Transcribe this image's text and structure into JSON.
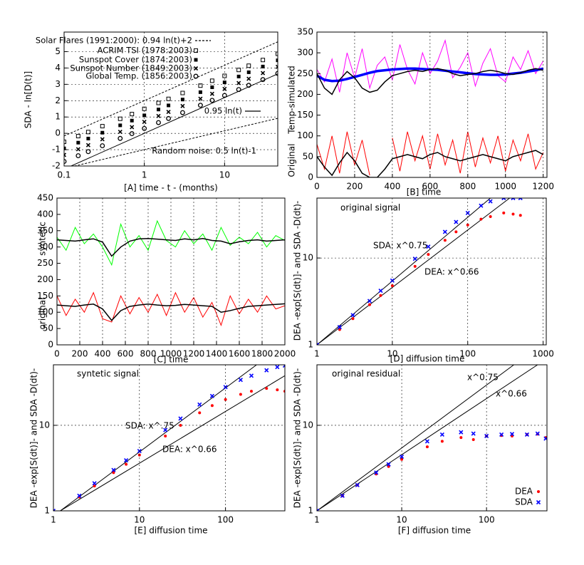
{
  "chart_data": [
    {
      "type": "line",
      "xlog": true,
      "xlim": [
        0.1,
        46
      ],
      "ylim": [
        -2,
        6.2
      ],
      "xticks": [
        0.1,
        1,
        10
      ],
      "yticks": [
        -2,
        -1,
        0,
        1,
        2,
        3,
        4,
        5
      ],
      "grid": true,
      "legend": "upper left",
      "xlabel": "[A]   time   - t -   (months)",
      "ylabel": "SDA   -   ln[D(t)]",
      "series": [
        {
          "name": "Solar Flares (1991:2000): 0.94 ln(t)+2",
          "style": "dash",
          "color": "#000000",
          "x": [
            0.1,
            46
          ],
          "values": [
            -0.16,
            5.6
          ]
        },
        {
          "name": "ACRIM TSI  (1978:2003)",
          "style": "points",
          "marker": "square",
          "color": "#000000",
          "x": [
            0.1,
            0.15,
            0.2,
            0.3,
            0.5,
            0.7,
            1,
            1.5,
            2,
            3,
            5,
            7,
            10,
            15,
            20,
            30,
            46
          ],
          "values": [
            -0.52,
            -0.17,
            0.08,
            0.44,
            0.89,
            1.18,
            1.5,
            1.86,
            2.11,
            2.47,
            2.92,
            3.22,
            3.52,
            3.88,
            4.14,
            4.49,
            4.87
          ]
        },
        {
          "name": "Sunspot Cover  (1874:2003)",
          "style": "points",
          "marker": "filled-square",
          "color": "#000000",
          "x": [
            0.1,
            0.15,
            0.2,
            0.3,
            0.5,
            0.7,
            1,
            1.5,
            2,
            3,
            5,
            7,
            10,
            15,
            20,
            30,
            46
          ],
          "values": [
            -0.92,
            -0.57,
            -0.32,
            0.04,
            0.49,
            0.78,
            1.1,
            1.46,
            1.71,
            2.07,
            2.52,
            2.82,
            3.12,
            3.48,
            3.74,
            4.09,
            4.47
          ]
        },
        {
          "name": "Sunspot Number  (1849:2003)",
          "style": "points",
          "marker": "x",
          "color": "#000000",
          "x": [
            0.1,
            0.15,
            0.2,
            0.3,
            0.5,
            0.7,
            1,
            1.5,
            2,
            3,
            5,
            7,
            10,
            15,
            20,
            30,
            46
          ],
          "values": [
            -1.32,
            -0.97,
            -0.72,
            -0.36,
            0.09,
            0.38,
            0.7,
            1.06,
            1.31,
            1.67,
            2.12,
            2.42,
            2.72,
            3.08,
            3.34,
            3.69,
            4.07
          ]
        },
        {
          "name": "Global Temp.  (1856:2003)",
          "style": "points",
          "marker": "circle",
          "color": "#000000",
          "x": [
            0.1,
            0.15,
            0.2,
            0.3,
            0.5,
            0.7,
            1,
            1.5,
            2,
            3,
            5,
            7,
            10,
            15,
            20,
            30,
            46
          ],
          "values": [
            -1.72,
            -1.37,
            -1.12,
            -0.76,
            -0.31,
            -0.02,
            0.3,
            0.66,
            0.91,
            1.27,
            1.72,
            2.02,
            2.32,
            2.68,
            2.94,
            3.29,
            3.67
          ]
        },
        {
          "name": "0.95 ln(t)",
          "style": "line",
          "color": "#000000",
          "x": [
            0.1,
            46
          ],
          "values": [
            -2.19,
            3.64
          ]
        },
        {
          "name": "Random noise: 0.5 ln(t)-1",
          "style": "dash",
          "color": "#000000",
          "x": [
            0.1,
            46
          ],
          "values": [
            -2.15,
            0.92
          ]
        }
      ]
    },
    {
      "type": "line",
      "xlim": [
        0,
        1220
      ],
      "ylim": [
        0,
        350
      ],
      "xticks": [
        0,
        200,
        400,
        600,
        800,
        1000,
        1200
      ],
      "yticks": [
        0,
        50,
        100,
        150,
        200,
        250,
        300,
        350
      ],
      "grid": "x",
      "xlabel": "[B]    time",
      "ylabel": [
        "Temp-simulated",
        "Original"
      ],
      "x": [
        0,
        40,
        80,
        120,
        160,
        200,
        240,
        280,
        320,
        360,
        400,
        440,
        480,
        520,
        560,
        600,
        640,
        680,
        720,
        760,
        800,
        840,
        880,
        920,
        960,
        1000,
        1040,
        1080,
        1120,
        1160,
        1200
      ],
      "series": [
        {
          "style": "line",
          "color": "#ff00ff",
          "values": [
            260,
            230,
            285,
            205,
            300,
            240,
            310,
            215,
            270,
            290,
            235,
            320,
            260,
            225,
            300,
            250,
            280,
            330,
            240,
            265,
            300,
            220,
            275,
            310,
            245,
            230,
            290,
            260,
            305,
            250,
            280
          ]
        },
        {
          "style": "line",
          "color": "#0000ff",
          "values": [
            245,
            235,
            232,
            233,
            237,
            242,
            247,
            252,
            256,
            258,
            260,
            261,
            262,
            262,
            261,
            260,
            259,
            257,
            255,
            253,
            251,
            249,
            248,
            247,
            247,
            248,
            250,
            252,
            255,
            258,
            262
          ]
        },
        {
          "style": "line",
          "color": "#000000",
          "values": [
            250,
            215,
            200,
            235,
            255,
            240,
            215,
            205,
            210,
            230,
            245,
            250,
            255,
            258,
            255,
            260,
            262,
            258,
            250,
            245,
            248,
            250,
            255,
            258,
            255,
            250,
            248,
            252,
            258,
            262,
            258
          ]
        },
        {
          "style": "line",
          "color": "#ff0000",
          "values": [
            80,
            20,
            100,
            10,
            110,
            30,
            90,
            5,
            null,
            null,
            95,
            15,
            110,
            40,
            100,
            20,
            105,
            30,
            90,
            10,
            110,
            25,
            95,
            35,
            100,
            15,
            90,
            40,
            105,
            20,
            60
          ]
        },
        {
          "style": "line",
          "color": "#000000",
          "values": [
            50,
            25,
            5,
            35,
            60,
            40,
            10,
            0,
            0,
            20,
            45,
            50,
            55,
            50,
            45,
            55,
            60,
            50,
            45,
            40,
            45,
            50,
            55,
            50,
            45,
            40,
            50,
            55,
            60,
            65,
            55
          ]
        }
      ]
    },
    {
      "type": "line",
      "xlim": [
        0,
        2000
      ],
      "ylim": [
        0,
        450
      ],
      "xticks": [
        0,
        200,
        400,
        600,
        800,
        1000,
        1200,
        1400,
        1600,
        1800,
        2000
      ],
      "yticks": [
        0,
        50,
        100,
        150,
        200,
        250,
        300,
        350,
        400,
        450
      ],
      "grid": "x",
      "xlabel": "[C]    time",
      "ylabel": [
        "syntetic",
        "original"
      ],
      "x": [
        0,
        80,
        160,
        240,
        320,
        400,
        480,
        560,
        640,
        720,
        800,
        880,
        960,
        1040,
        1120,
        1200,
        1280,
        1360,
        1440,
        1520,
        1600,
        1680,
        1760,
        1840,
        1920,
        2000
      ],
      "series": [
        {
          "style": "line",
          "color": "#00ff00",
          "values": [
            330,
            290,
            360,
            310,
            340,
            300,
            245,
            370,
            300,
            335,
            290,
            380,
            320,
            300,
            350,
            310,
            340,
            290,
            360,
            305,
            330,
            310,
            345,
            300,
            335,
            320
          ]
        },
        {
          "style": "line",
          "color": "#000000",
          "values": [
            322,
            320,
            318,
            322,
            325,
            315,
            272,
            300,
            318,
            325,
            326,
            324,
            322,
            320,
            325,
            322,
            326,
            320,
            318,
            310,
            316,
            320,
            322,
            318,
            320,
            322
          ]
        },
        {
          "style": "line",
          "color": "#ff0000",
          "values": [
            150,
            90,
            140,
            100,
            160,
            80,
            70,
            150,
            95,
            145,
            100,
            155,
            90,
            160,
            100,
            145,
            85,
            130,
            60,
            150,
            95,
            140,
            100,
            150,
            110,
            120
          ]
        },
        {
          "style": "line",
          "color": "#000000",
          "values": [
            122,
            120,
            118,
            122,
            125,
            110,
            75,
            105,
            118,
            122,
            125,
            122,
            120,
            121,
            124,
            122,
            120,
            118,
            100,
            105,
            112,
            118,
            120,
            122,
            124,
            126
          ]
        }
      ]
    },
    {
      "type": "scatter",
      "xlog": true,
      "ylog": true,
      "xlim": [
        1,
        1100
      ],
      "ylim": [
        1,
        49
      ],
      "xticks": [
        1,
        10,
        100,
        1000
      ],
      "yticks": [
        1,
        10
      ],
      "grid": true,
      "xlabel": "[D]   diffusion time",
      "ylabel": "DEA -exp[S(dt)]-   and   SDA -D(dt)-",
      "annotations": [
        "original signal",
        "SDA: x^0.75",
        "DEA:  x^0.66"
      ],
      "x": [
        1,
        2,
        3,
        5,
        7,
        10,
        20,
        30,
        50,
        70,
        100,
        150,
        200,
        300,
        400,
        500
      ],
      "series": [
        {
          "style": "line",
          "color": "#000000",
          "x": [
            1,
            200
          ],
          "values": [
            1,
            49
          ]
        },
        {
          "style": "line",
          "color": "#000000",
          "x": [
            1,
            360
          ],
          "values": [
            1,
            49
          ]
        },
        {
          "style": "points",
          "marker": "dot",
          "color": "#ff0000",
          "values": [
            1,
            1.5,
            2,
            2.9,
            3.7,
            4.8,
            8,
            11,
            16,
            20,
            24,
            28,
            30,
            33,
            32,
            31
          ]
        },
        {
          "style": "points",
          "marker": "x",
          "color": "#0000ff",
          "values": [
            1,
            1.6,
            2.2,
            3.2,
            4.2,
            5.5,
            9.8,
            13.5,
            20,
            26,
            33,
            40,
            45,
            49,
            49,
            49
          ]
        }
      ]
    },
    {
      "type": "scatter",
      "xlog": true,
      "ylog": true,
      "xlim": [
        1,
        490
      ],
      "ylim": [
        1,
        51
      ],
      "xticks": [
        1,
        10,
        100
      ],
      "yticks": [
        1,
        10
      ],
      "grid": true,
      "xlabel": "[E]   diffusion time",
      "ylabel": "DEA -exp[S(dt)]-   and   SDA -D(dt)-",
      "annotations": [
        "syntetic signal",
        "SDA: x^.75",
        "DEA:  x^0.66"
      ],
      "x": [
        1,
        2,
        3,
        5,
        7,
        10,
        20,
        30,
        50,
        70,
        100,
        150,
        200,
        300,
        400,
        490
      ],
      "series": [
        {
          "style": "line",
          "color": "#000000",
          "x": [
            1.2,
            230
          ],
          "values": [
            1,
            51
          ]
        },
        {
          "style": "line",
          "color": "#000000",
          "x": [
            1.2,
            490
          ],
          "values": [
            1,
            38
          ]
        },
        {
          "style": "points",
          "marker": "dot",
          "color": "#ff0000",
          "values": [
            1,
            1.45,
            1.95,
            2.8,
            3.5,
            4.5,
            7.5,
            10,
            14,
            17,
            20,
            23,
            25,
            27,
            26,
            25
          ]
        },
        {
          "style": "points",
          "marker": "x",
          "color": "#0000ff",
          "values": [
            1,
            1.5,
            2.1,
            3,
            3.9,
            5,
            8.8,
            12,
            17.5,
            22,
            28,
            34,
            38,
            44,
            48,
            50
          ]
        }
      ]
    },
    {
      "type": "scatter",
      "xlog": true,
      "ylog": true,
      "xlim": [
        1,
        516
      ],
      "ylim": [
        1,
        51
      ],
      "xticks": [
        1,
        10,
        100
      ],
      "yticks": [
        1,
        10
      ],
      "grid": true,
      "legend": "lower right",
      "xlabel": "[F]   diffusion time",
      "ylabel": "DEA -exp[S(dt)]-   and   SDA -D(dt)-",
      "annotations": [
        "original residual",
        "x^0.75",
        "x^0.66"
      ],
      "x": [
        1,
        2,
        3,
        5,
        7,
        10,
        20,
        30,
        50,
        70,
        100,
        150,
        200,
        300,
        400,
        500
      ],
      "series": [
        {
          "style": "line",
          "color": "#000000",
          "x": [
            1,
            210
          ],
          "values": [
            1,
            51
          ]
        },
        {
          "style": "line",
          "color": "#000000",
          "x": [
            1,
            400
          ],
          "values": [
            1,
            51
          ]
        },
        {
          "name": "DEA",
          "style": "points",
          "marker": "dot",
          "color": "#ff0000",
          "values": [
            1,
            1.5,
            2,
            2.7,
            3.3,
            4,
            5.6,
            6.5,
            7.2,
            6.8,
            7.5,
            7.6,
            7.5,
            7.8,
            7.9,
            7.2
          ]
        },
        {
          "name": "SDA",
          "style": "points",
          "marker": "x",
          "color": "#0000ff",
          "values": [
            1,
            1.5,
            2,
            2.8,
            3.5,
            4.3,
            6.5,
            7.8,
            8.3,
            8,
            7.5,
            7.8,
            7.9,
            7.8,
            8,
            7
          ]
        }
      ]
    }
  ]
}
